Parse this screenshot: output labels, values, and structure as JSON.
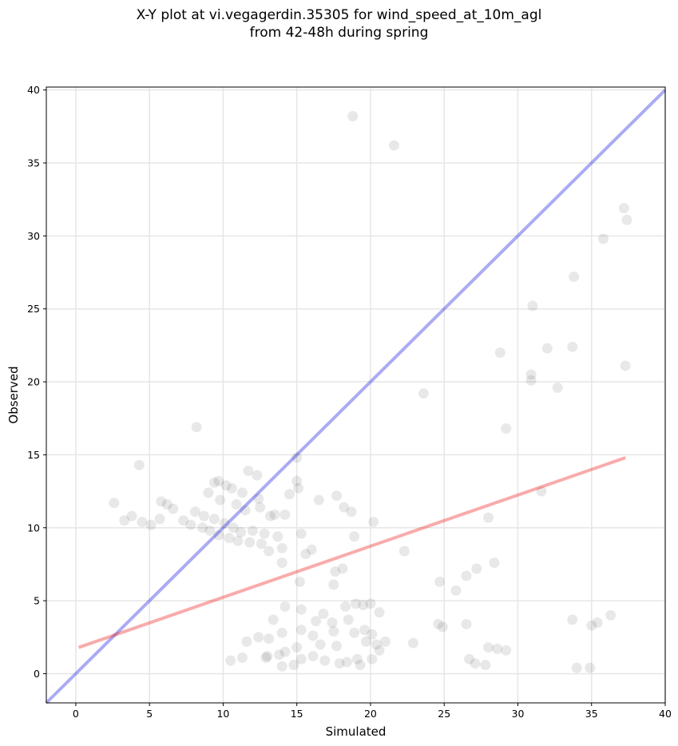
{
  "chart_data": {
    "type": "scatter",
    "title_line1": "X-Y plot at vi.vegagerdin.35305 for wind_speed_at_10m_agl",
    "title_line2": "from 42-48h during spring",
    "xlabel": "Simulated",
    "ylabel": "Observed",
    "xlim": [
      -2,
      40
    ],
    "ylim": [
      -2,
      40.2
    ],
    "xticks": [
      0,
      5,
      10,
      15,
      20,
      25,
      30,
      35,
      40
    ],
    "yticks": [
      0,
      5,
      10,
      15,
      20,
      25,
      30,
      35,
      40
    ],
    "grid": true,
    "colors": {
      "points": "#000000",
      "identity_line": "#0000dd",
      "fit_line": "#ee0000"
    },
    "identity_line": {
      "x": [
        -2,
        40
      ],
      "y": [
        -2,
        40
      ]
    },
    "fit_line": {
      "x": [
        0.2,
        37.3
      ],
      "y": [
        1.8,
        14.8
      ]
    },
    "points": [
      [
        18.8,
        38.2
      ],
      [
        21.6,
        36.2
      ],
      [
        37.2,
        31.9
      ],
      [
        37.4,
        31.1
      ],
      [
        35.8,
        29.8
      ],
      [
        33.8,
        27.2
      ],
      [
        31.0,
        25.2
      ],
      [
        32.0,
        22.3
      ],
      [
        33.7,
        22.4
      ],
      [
        28.8,
        22.0
      ],
      [
        30.9,
        20.5
      ],
      [
        30.9,
        20.1
      ],
      [
        32.7,
        19.6
      ],
      [
        37.3,
        21.1
      ],
      [
        23.6,
        19.2
      ],
      [
        29.2,
        16.8
      ],
      [
        31.6,
        12.5
      ],
      [
        28.0,
        10.7
      ],
      [
        22.3,
        8.4
      ],
      [
        28.4,
        7.6
      ],
      [
        27.2,
        7.2
      ],
      [
        26.5,
        6.7
      ],
      [
        24.7,
        6.3
      ],
      [
        25.8,
        5.7
      ],
      [
        36.3,
        4.0
      ],
      [
        35.4,
        3.5
      ],
      [
        33.7,
        3.7
      ],
      [
        35.0,
        3.3
      ],
      [
        24.6,
        3.4
      ],
      [
        24.9,
        3.2
      ],
      [
        26.5,
        3.4
      ],
      [
        22.9,
        2.1
      ],
      [
        28.0,
        1.8
      ],
      [
        28.6,
        1.7
      ],
      [
        29.2,
        1.6
      ],
      [
        26.7,
        1.0
      ],
      [
        27.1,
        0.7
      ],
      [
        27.8,
        0.6
      ],
      [
        34.0,
        0.4
      ],
      [
        34.9,
        0.4
      ],
      [
        8.2,
        16.9
      ],
      [
        4.3,
        14.3
      ],
      [
        15.0,
        14.8
      ],
      [
        11.7,
        13.9
      ],
      [
        12.3,
        13.6
      ],
      [
        15.0,
        13.2
      ],
      [
        15.1,
        12.7
      ],
      [
        14.5,
        12.3
      ],
      [
        12.4,
        12.0
      ],
      [
        17.7,
        12.2
      ],
      [
        16.5,
        11.9
      ],
      [
        18.2,
        11.4
      ],
      [
        18.7,
        11.1
      ],
      [
        20.2,
        10.4
      ],
      [
        18.9,
        9.4
      ],
      [
        13.5,
        10.9
      ],
      [
        14.2,
        10.9
      ],
      [
        15.3,
        9.6
      ],
      [
        16.0,
        8.5
      ],
      [
        15.6,
        8.2
      ],
      [
        17.6,
        7.0
      ],
      [
        18.1,
        7.2
      ],
      [
        14.0,
        7.6
      ],
      [
        15.2,
        6.3
      ],
      [
        17.5,
        6.1
      ],
      [
        19.0,
        4.8
      ],
      [
        20.0,
        4.8
      ],
      [
        18.3,
        4.6
      ],
      [
        19.5,
        4.7
      ],
      [
        20.6,
        4.2
      ],
      [
        16.8,
        4.1
      ],
      [
        15.3,
        4.4
      ],
      [
        14.2,
        4.6
      ],
      [
        13.4,
        3.7
      ],
      [
        16.3,
        3.6
      ],
      [
        17.4,
        3.5
      ],
      [
        18.5,
        3.7
      ],
      [
        19.6,
        3.0
      ],
      [
        20.1,
        2.7
      ],
      [
        18.9,
        2.8
      ],
      [
        17.5,
        2.9
      ],
      [
        16.1,
        2.6
      ],
      [
        15.3,
        3.0
      ],
      [
        14.0,
        2.8
      ],
      [
        13.1,
        2.4
      ],
      [
        12.4,
        2.5
      ],
      [
        11.6,
        2.2
      ],
      [
        19.7,
        2.2
      ],
      [
        20.4,
        2.0
      ],
      [
        21.0,
        2.2
      ],
      [
        17.7,
        1.9
      ],
      [
        16.6,
        2.0
      ],
      [
        15.0,
        1.8
      ],
      [
        14.2,
        1.5
      ],
      [
        13.8,
        1.3
      ],
      [
        12.9,
        1.1
      ],
      [
        11.3,
        1.1
      ],
      [
        10.5,
        0.9
      ],
      [
        14.8,
        0.6
      ],
      [
        17.9,
        0.7
      ],
      [
        19.1,
        1.0
      ],
      [
        20.1,
        1.0
      ],
      [
        20.6,
        1.6
      ],
      [
        19.3,
        0.6
      ],
      [
        18.4,
        0.8
      ],
      [
        16.9,
        0.9
      ],
      [
        16.1,
        1.2
      ],
      [
        15.3,
        1.0
      ],
      [
        14.0,
        0.5
      ],
      [
        13.0,
        1.2
      ],
      [
        9.4,
        13.1
      ],
      [
        9.7,
        13.2
      ],
      [
        10.2,
        12.9
      ],
      [
        10.6,
        12.7
      ],
      [
        9.0,
        12.4
      ],
      [
        11.3,
        12.4
      ],
      [
        9.8,
        11.9
      ],
      [
        10.9,
        11.6
      ],
      [
        11.5,
        11.2
      ],
      [
        12.5,
        11.4
      ],
      [
        13.2,
        10.8
      ],
      [
        8.1,
        11.1
      ],
      [
        8.7,
        10.8
      ],
      [
        9.4,
        10.6
      ],
      [
        10.1,
        10.3
      ],
      [
        10.7,
        10.0
      ],
      [
        11.2,
        9.7
      ],
      [
        12.0,
        9.8
      ],
      [
        12.8,
        9.6
      ],
      [
        13.7,
        9.4
      ],
      [
        6.2,
        11.6
      ],
      [
        6.6,
        11.3
      ],
      [
        5.8,
        11.8
      ],
      [
        2.6,
        11.7
      ],
      [
        3.8,
        10.8
      ],
      [
        3.3,
        10.5
      ],
      [
        4.5,
        10.4
      ],
      [
        5.1,
        10.2
      ],
      [
        5.7,
        10.6
      ],
      [
        7.3,
        10.5
      ],
      [
        7.8,
        10.2
      ],
      [
        8.6,
        10.0
      ],
      [
        9.1,
        9.8
      ],
      [
        9.7,
        9.5
      ],
      [
        10.4,
        9.3
      ],
      [
        11.0,
        9.1
      ],
      [
        11.8,
        9.0
      ],
      [
        12.6,
        8.9
      ],
      [
        13.1,
        8.4
      ],
      [
        14.0,
        8.6
      ]
    ]
  }
}
